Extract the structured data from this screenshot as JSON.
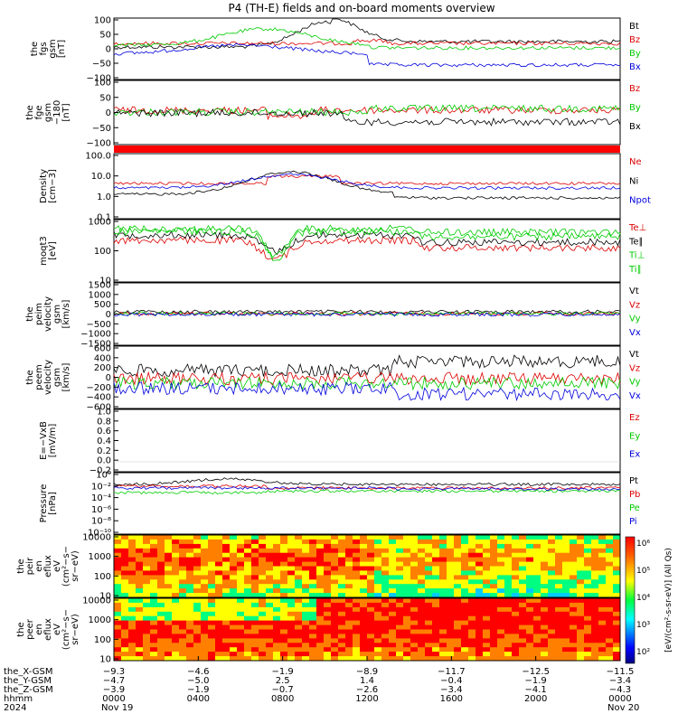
{
  "title": "P4 (TH-E) fields and on-board moments overview",
  "colors": {
    "black": "#000000",
    "red": "#dd0000",
    "green": "#00cc00",
    "blue": "#0000dd",
    "bar": "#ff0000"
  },
  "chart_data": [
    {
      "type": "line",
      "id": "fgs",
      "ylabel_lines": [
        "the",
        "fgs",
        "gsm",
        "[nT]"
      ],
      "yticks": [
        "100",
        "50",
        "0",
        "−50",
        "−100"
      ],
      "ylim": [
        -100,
        100
      ],
      "series": [
        {
          "name": "Bt",
          "color": "black"
        },
        {
          "name": "Bz",
          "color": "red"
        },
        {
          "name": "By",
          "color": "green"
        },
        {
          "name": "Bx",
          "color": "blue"
        }
      ]
    },
    {
      "type": "line",
      "id": "fge",
      "ylabel_lines": [
        "the",
        "fge",
        "gsm",
        "−180",
        "[nT]"
      ],
      "yticks": [
        "100",
        "50",
        "0",
        "−50",
        "−100"
      ],
      "ylim": [
        -120,
        100
      ],
      "series": [
        {
          "name": "Bz",
          "color": "red"
        },
        {
          "name": "By",
          "color": "green"
        },
        {
          "name": "Bx",
          "color": "black"
        }
      ]
    },
    {
      "type": "line",
      "id": "density",
      "ylabel_lines": [
        "Density",
        "[cm−3]"
      ],
      "yticks": [
        "100.0",
        "10.0",
        "1.0",
        "0.1"
      ],
      "log": true,
      "series": [
        {
          "name": "Ne",
          "color": "red"
        },
        {
          "name": "Ni",
          "color": "black"
        },
        {
          "name": "Npot",
          "color": "blue"
        }
      ]
    },
    {
      "type": "line",
      "id": "temp",
      "ylabel_lines": [
        "moqt3",
        "[eV]"
      ],
      "yticks": [
        "1000",
        "100",
        "10"
      ],
      "log": true,
      "series": [
        {
          "name": "Te⊥",
          "color": "red"
        },
        {
          "name": "Te∥",
          "color": "black"
        },
        {
          "name": "Ti⊥",
          "color": "green"
        },
        {
          "name": "Ti∥",
          "color": "green"
        }
      ]
    },
    {
      "type": "line",
      "id": "peim",
      "ylabel_lines": [
        "the",
        "peim",
        "velocity",
        "gsm",
        "[km/s]"
      ],
      "yticks": [
        "1500",
        "1000",
        "500",
        "0",
        "−500",
        "−1000",
        "−1500"
      ],
      "ylim": [
        -1500,
        1500
      ],
      "series": [
        {
          "name": "Vt",
          "color": "black"
        },
        {
          "name": "Vz",
          "color": "red"
        },
        {
          "name": "Vy",
          "color": "green"
        },
        {
          "name": "Vx",
          "color": "blue"
        }
      ]
    },
    {
      "type": "line",
      "id": "peem",
      "ylabel_lines": [
        "the",
        "peem",
        "velocity",
        "gsm",
        "[km/s]"
      ],
      "yticks": [
        "600",
        "400",
        "200",
        "0",
        "−200",
        "−400",
        "−600"
      ],
      "ylim": [
        -600,
        600
      ],
      "series": [
        {
          "name": "Vt",
          "color": "black"
        },
        {
          "name": "Vz",
          "color": "red"
        },
        {
          "name": "Vy",
          "color": "green"
        },
        {
          "name": "Vx",
          "color": "blue"
        }
      ]
    },
    {
      "type": "line",
      "id": "efield",
      "ylabel_lines": [
        "E=−VxB",
        "[mV/m]"
      ],
      "yticks": [
        "1.0",
        "0.8",
        "0.6",
        "0.4",
        "0.2",
        "0.0",
        "−0.2"
      ],
      "ylim": [
        -0.2,
        1.0
      ],
      "series": [
        {
          "name": "Ez",
          "color": "red"
        },
        {
          "name": "Ey",
          "color": "green"
        },
        {
          "name": "Ex",
          "color": "blue"
        }
      ]
    },
    {
      "type": "line",
      "id": "pressure",
      "ylabel_lines": [
        "Pressure",
        "[nPa]"
      ],
      "yticks": [
        "10⁰",
        "10⁻²",
        "10⁻⁴",
        "10⁻⁶",
        "10⁻⁸",
        "10⁻¹⁰"
      ],
      "log": true,
      "series": [
        {
          "name": "Pt",
          "color": "black"
        },
        {
          "name": "Pb",
          "color": "red"
        },
        {
          "name": "Pe",
          "color": "green"
        },
        {
          "name": "Pi",
          "color": "blue"
        }
      ]
    },
    {
      "type": "heatmap",
      "id": "peir",
      "ylabel_lines": [
        "the",
        "peir",
        "en",
        "eflux",
        "eV",
        "(cm²−s−",
        "sr−eV)"
      ],
      "yticks": [
        "10000",
        "1000",
        "100",
        "10"
      ]
    },
    {
      "type": "heatmap",
      "id": "peer",
      "ylabel_lines": [
        "the",
        "peer",
        "en",
        "eflux",
        "eV",
        "(cm²−s−",
        "sr−eV)"
      ],
      "yticks": [
        "10000",
        "1000",
        "100",
        "10"
      ]
    }
  ],
  "colorbar": {
    "ticks": [
      "10⁶",
      "10⁵",
      "10⁴",
      "10³",
      "10²"
    ],
    "label": "[eV/(cm²-s-sr-eV)] (All Qs)"
  },
  "xaxis": {
    "row_labels": [
      "the_X-GSM",
      "the_Y-GSM",
      "the_Z-GSM",
      "hhmm",
      "2024"
    ],
    "ticks": [
      {
        "t": 0,
        "vals": [
          "−9.3",
          "−4.7",
          "−3.9",
          "0000",
          "Nov 19"
        ]
      },
      {
        "t": 4,
        "vals": [
          "−4.6",
          "−5.0",
          "−1.9",
          "0400",
          ""
        ]
      },
      {
        "t": 8,
        "vals": [
          "−1.9",
          "2.5",
          "−0.7",
          "0800",
          ""
        ]
      },
      {
        "t": 12,
        "vals": [
          "−8.9",
          "1.4",
          "−2.6",
          "1200",
          ""
        ]
      },
      {
        "t": 16,
        "vals": [
          "−11.7",
          "−0.4",
          "−3.4",
          "1600",
          ""
        ]
      },
      {
        "t": 20,
        "vals": [
          "−12.5",
          "−1.9",
          "−4.1",
          "2000",
          ""
        ]
      },
      {
        "t": 24,
        "vals": [
          "−11.5",
          "−3.4",
          "−4.3",
          "0000",
          "Nov 20"
        ]
      }
    ]
  }
}
